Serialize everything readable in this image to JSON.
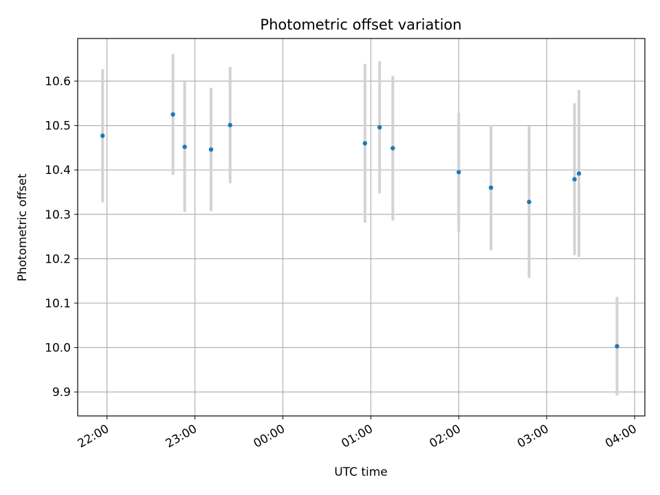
{
  "chart_data": {
    "type": "scatter",
    "title": "Photometric offset variation",
    "xlabel": "UTC time",
    "ylabel": "Photometric offset",
    "x_ticks": [
      "22:00",
      "23:00",
      "00:00",
      "01:00",
      "02:00",
      "03:00",
      "04:00"
    ],
    "y_ticks": [
      "9.9",
      "10.0",
      "10.1",
      "10.2",
      "10.3",
      "10.4",
      "10.5",
      "10.6"
    ],
    "x_range": [
      "21:40",
      "04:07"
    ],
    "ylim": [
      9.846,
      10.696
    ],
    "grid": true,
    "colors": {
      "point": "#1f77b4",
      "errorbar": "#d3d3d3",
      "grid": "#b0b0b0"
    },
    "points": [
      {
        "time": "21:57",
        "y": 10.477,
        "err": 0.15
      },
      {
        "time": "22:45",
        "y": 10.525,
        "err": 0.136
      },
      {
        "time": "22:53",
        "y": 10.452,
        "err": 0.147
      },
      {
        "time": "23:11",
        "y": 10.446,
        "err": 0.139
      },
      {
        "time": "23:24",
        "y": 10.501,
        "err": 0.131
      },
      {
        "time": "00:56",
        "y": 10.46,
        "err": 0.179
      },
      {
        "time": "01:06",
        "y": 10.496,
        "err": 0.149
      },
      {
        "time": "01:15",
        "y": 10.449,
        "err": 0.163
      },
      {
        "time": "02:00",
        "y": 10.395,
        "err": 0.134
      },
      {
        "time": "02:22",
        "y": 10.36,
        "err": 0.141
      },
      {
        "time": "02:48",
        "y": 10.328,
        "err": 0.171
      },
      {
        "time": "03:19",
        "y": 10.379,
        "err": 0.171
      },
      {
        "time": "03:22",
        "y": 10.392,
        "err": 0.188
      },
      {
        "time": "03:48",
        "y": 10.003,
        "err": 0.111
      }
    ]
  }
}
